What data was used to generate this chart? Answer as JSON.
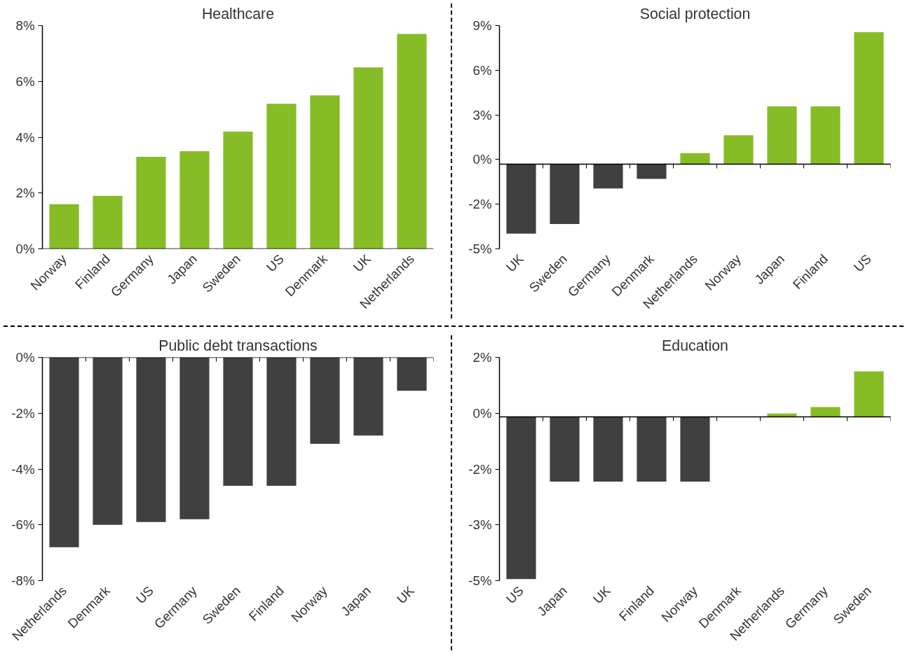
{
  "chart_data": [
    {
      "type": "bar",
      "title": "Healthcare",
      "categories": [
        "Norway",
        "Finland",
        "Germany",
        "Japan",
        "Sweden",
        "US",
        "Denmark",
        "UK",
        "Netherlands"
      ],
      "values": [
        1.6,
        1.9,
        3.3,
        3.5,
        4.2,
        5.2,
        5.5,
        6.5,
        7.7
      ],
      "colors": [
        "#86bc25",
        "#86bc25",
        "#86bc25",
        "#86bc25",
        "#86bc25",
        "#86bc25",
        "#86bc25",
        "#86bc25",
        "#86bc25"
      ],
      "ylim": [
        0,
        8
      ],
      "yticks": [
        {
          "value": 0,
          "label": "0%"
        },
        {
          "value": 2,
          "label": "2%"
        },
        {
          "value": 4,
          "label": "4%"
        },
        {
          "value": 6,
          "label": "6%"
        },
        {
          "value": 8,
          "label": "8%"
        }
      ],
      "grid": false
    },
    {
      "type": "bar",
      "title": "Social protection",
      "categories": [
        "UK",
        "Sweden",
        "Germany",
        "Denmark",
        "Netherlands",
        "Norway",
        "Japan",
        "Finland",
        "US"
      ],
      "values": [
        -4.3,
        -3.7,
        -1.5,
        -0.9,
        0.7,
        1.8,
        3.6,
        3.6,
        8.2
      ],
      "colors": [
        "#404040",
        "#404040",
        "#404040",
        "#404040",
        "#86bc25",
        "#86bc25",
        "#86bc25",
        "#86bc25",
        "#86bc25"
      ],
      "ylim": [
        -5.24,
        8.61
      ],
      "yticks": [
        {
          "value": -5.24,
          "label": "-5%"
        },
        {
          "value": -2.47,
          "label": "-2%"
        },
        {
          "value": 0.3,
          "label": "0%"
        },
        {
          "value": 3.07,
          "label": "3%"
        },
        {
          "value": 5.84,
          "label": "6%"
        },
        {
          "value": 8.61,
          "label": "9%"
        }
      ],
      "grid": false
    },
    {
      "type": "bar",
      "title": "Public debt transactions",
      "categories": [
        "Netherlands",
        "Denmark",
        "US",
        "Germany",
        "Sweden",
        "Finland",
        "Norway",
        "Japan",
        "UK"
      ],
      "values": [
        -6.8,
        -6.0,
        -5.9,
        -5.8,
        -4.6,
        -4.6,
        -3.1,
        -2.8,
        -1.2
      ],
      "colors": [
        "#404040",
        "#404040",
        "#404040",
        "#404040",
        "#404040",
        "#404040",
        "#404040",
        "#404040",
        "#404040"
      ],
      "ylim": [
        -8,
        0
      ],
      "yticks": [
        {
          "value": -8,
          "label": "-8%"
        },
        {
          "value": -6,
          "label": "-6%"
        },
        {
          "value": -4,
          "label": "-4%"
        },
        {
          "value": -2,
          "label": "-2%"
        },
        {
          "value": 0,
          "label": "0%"
        }
      ],
      "grid": false
    },
    {
      "type": "bar",
      "title": "Education",
      "categories": [
        "US",
        "Japan",
        "UK",
        "Finland",
        "Norway",
        "Denmark",
        "Netherlands",
        "Germany",
        "Sweden"
      ],
      "values": [
        -5.0,
        -2.0,
        -2.0,
        -2.0,
        -2.0,
        0,
        0.1,
        0.3,
        1.4
      ],
      "colors": [
        "#404040",
        "#404040",
        "#404040",
        "#404040",
        "#404040",
        "#404040",
        "#86bc25",
        "#86bc25",
        "#86bc25"
      ],
      "ylim": [
        -5.05,
        1.83
      ],
      "yticks": [
        {
          "value": -5.05,
          "label": "-5%"
        },
        {
          "value": -3.33,
          "label": "-3%"
        },
        {
          "value": -1.61,
          "label": "-2%"
        },
        {
          "value": 0.11,
          "label": "0%"
        },
        {
          "value": 1.83,
          "label": "2%"
        }
      ],
      "grid": false
    }
  ]
}
